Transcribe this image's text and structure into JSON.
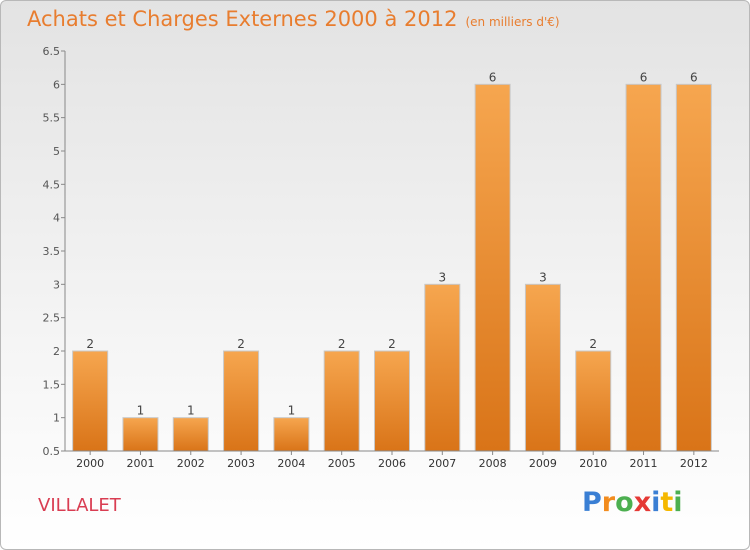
{
  "header": {
    "title": "Achats et Charges Externes 2000 à 2012",
    "unit": "(en milliers d'€)"
  },
  "commune": "VILLALET",
  "logo": {
    "letters": [
      "P",
      "r",
      "o",
      "x",
      "i",
      "t",
      "i"
    ]
  },
  "colors": {
    "bar_light": "#f6a64f",
    "bar_dark": "#d97418",
    "title": "#e87d2f",
    "commune": "#d93d52"
  },
  "chart_data": {
    "type": "bar",
    "title": "Achats et Charges Externes 2000 à 2012",
    "subtitle": "(en milliers d'€)",
    "categories": [
      "2000",
      "2001",
      "2002",
      "2003",
      "2004",
      "2005",
      "2006",
      "2007",
      "2008",
      "2009",
      "2010",
      "2011",
      "2012"
    ],
    "values": [
      2,
      1,
      1,
      2,
      1,
      2,
      2,
      3,
      6,
      3,
      2,
      6,
      6
    ],
    "value_labels": [
      "2",
      "1",
      "1",
      "2",
      "1",
      "2",
      "2",
      "3",
      "6",
      "3",
      "2",
      "6",
      "6"
    ],
    "yticks": [
      "0.5",
      "1",
      "1.5",
      "2",
      "2.5",
      "3",
      "3.5",
      "4",
      "4.5",
      "5",
      "5.5",
      "6",
      "6.5"
    ],
    "ylim": [
      0.5,
      6.5
    ],
    "xlabel": "",
    "ylabel": "",
    "grid": false,
    "legend": "none"
  }
}
